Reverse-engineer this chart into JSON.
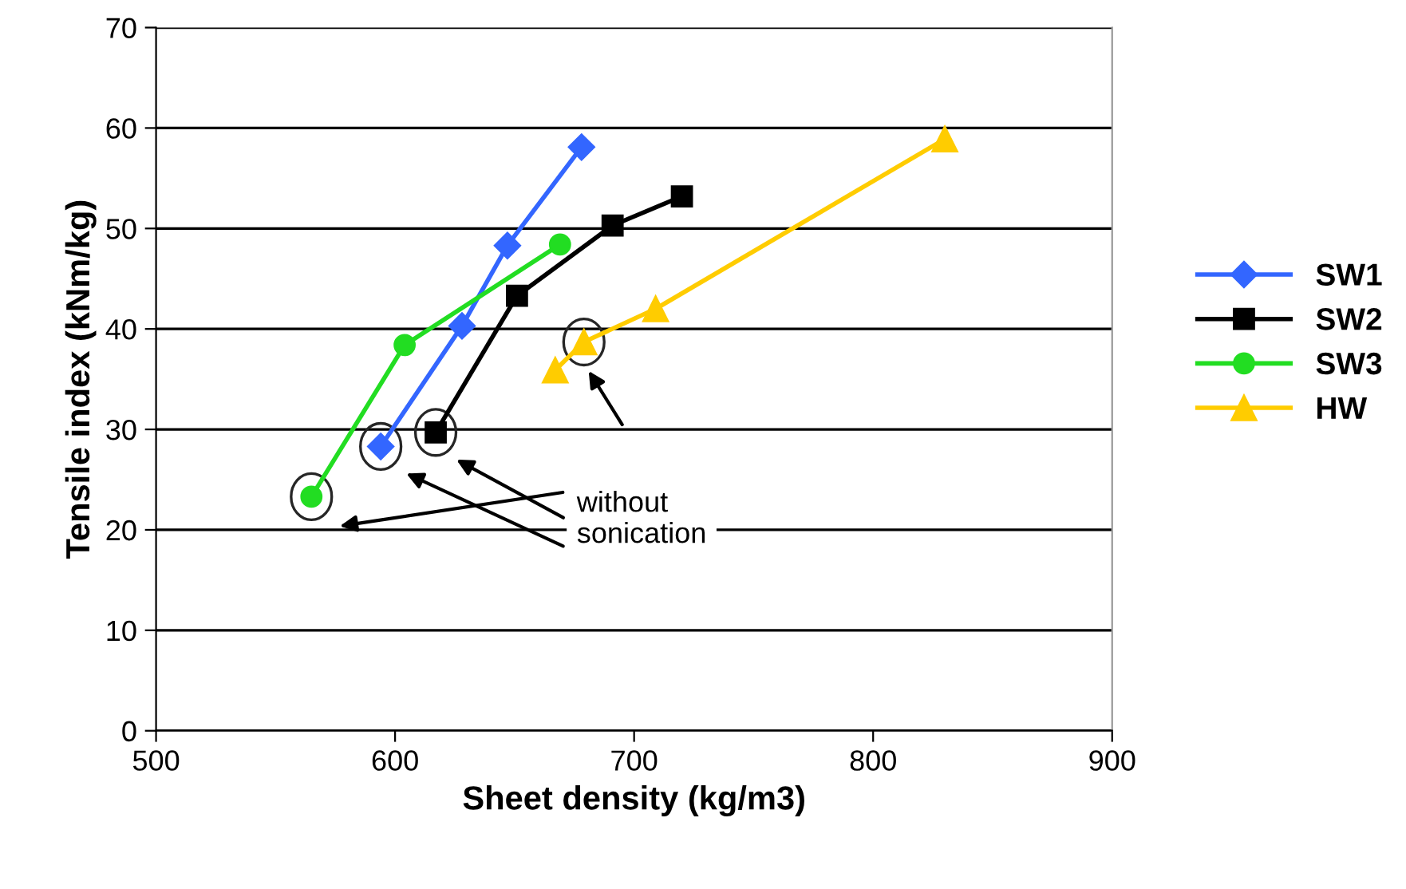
{
  "chart_data": {
    "type": "line",
    "xlabel": "Sheet density (kg/m3)",
    "ylabel": "Tensile index (kNm/kg)",
    "xlim": [
      500,
      900
    ],
    "xticks": [
      500,
      600,
      700,
      800,
      900
    ],
    "ylim": [
      0,
      70
    ],
    "yticks": [
      0,
      10,
      20,
      30,
      40,
      50,
      60,
      70
    ],
    "grid": "y",
    "legend": "right",
    "series": [
      {
        "name": "SW1",
        "color": "#3366ff",
        "marker": "diamond",
        "x": [
          594,
          628,
          647,
          678
        ],
        "values": [
          28.3,
          40.3,
          48.3,
          58.1
        ]
      },
      {
        "name": "SW2",
        "color": "#000000",
        "marker": "square",
        "x": [
          617,
          651,
          691,
          720
        ],
        "values": [
          29.7,
          43.3,
          50.3,
          53.2
        ]
      },
      {
        "name": "SW3",
        "color": "#22dd22",
        "marker": "circle",
        "x": [
          565,
          604,
          669
        ],
        "values": [
          23.3,
          38.4,
          48.4
        ]
      },
      {
        "name": "HW",
        "color": "#ffcc00",
        "marker": "triangle",
        "x": [
          667,
          679,
          709,
          830
        ],
        "values": [
          35.9,
          38.7,
          42.0,
          58.9
        ]
      }
    ],
    "annotations": [
      "without\nsonication"
    ]
  }
}
